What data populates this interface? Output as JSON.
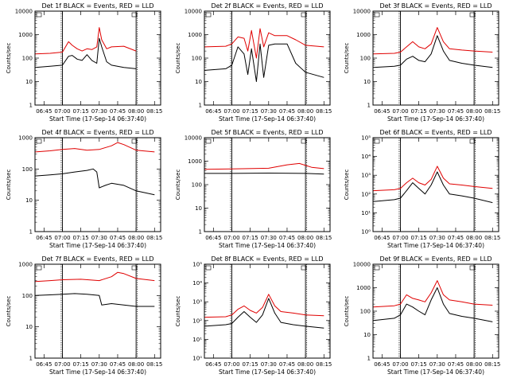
{
  "chart_data": [
    {
      "type": "line",
      "title": "Det 1f BLACK = Events, RED = LLD",
      "ylabel": "Counts/sec",
      "xlabel": "Start Time (17-Sep-14 06:37:40)",
      "yscale": "log",
      "ylim": [
        1,
        10000
      ],
      "y_ticks": [
        "1",
        "10",
        "100",
        "1000",
        "10000"
      ],
      "xlim": [
        "06:37:40",
        "08:20:00"
      ],
      "x_ticks": [
        "06:45",
        "07:00",
        "07:15",
        "07:30",
        "07:45",
        "08:00",
        "08:15"
      ],
      "markers": {
        "dotted": [
          "06:59",
          "08:01"
        ],
        "solid": [
          "07:00",
          "08:00"
        ]
      },
      "series": [
        {
          "color": "#000000",
          "x": [
            "06:38",
            "06:50",
            "07:00",
            "07:05",
            "07:08",
            "07:12",
            "07:16",
            "07:20",
            "07:24",
            "07:28",
            "07:30",
            "07:32",
            "07:36",
            "07:40",
            "07:50",
            "08:00"
          ],
          "y": [
            40,
            45,
            50,
            120,
            130,
            90,
            80,
            140,
            80,
            60,
            700,
            300,
            70,
            50,
            40,
            35
          ]
        },
        {
          "color": "#e00000",
          "x": [
            "06:38",
            "06:50",
            "07:00",
            "07:05",
            "07:08",
            "07:12",
            "07:16",
            "07:20",
            "07:24",
            "07:28",
            "07:30",
            "07:32",
            "07:36",
            "07:40",
            "07:50",
            "08:00"
          ],
          "y": [
            150,
            160,
            180,
            500,
            350,
            250,
            200,
            250,
            230,
            300,
            2000,
            600,
            250,
            300,
            320,
            200
          ]
        }
      ]
    },
    {
      "type": "line",
      "title": "Det 2f BLACK = Events, RED = LLD",
      "ylabel": "Counts/sec",
      "xlabel": "Start Time (17-Sep-14 06:37:40)",
      "yscale": "log",
      "ylim": [
        1,
        10000
      ],
      "y_ticks": [
        "1",
        "10",
        "100",
        "1000",
        "10000"
      ],
      "xlim": [
        "06:37:40",
        "08:20:00"
      ],
      "x_ticks": [
        "06:45",
        "07:00",
        "07:15",
        "07:30",
        "07:45",
        "08:00",
        "08:15"
      ],
      "markers": {
        "dotted": [
          "06:59",
          "08:01"
        ],
        "solid": [
          "07:00",
          "08:00"
        ]
      },
      "series": [
        {
          "color": "#000000",
          "x": [
            "06:38",
            "06:55",
            "07:00",
            "07:05",
            "07:10",
            "07:13",
            "07:16",
            "07:20",
            "07:23",
            "07:26",
            "07:30",
            "07:35",
            "07:45",
            "07:52",
            "08:00",
            "08:15"
          ],
          "y": [
            30,
            35,
            50,
            300,
            150,
            20,
            250,
            10,
            400,
            15,
            350,
            400,
            400,
            60,
            25,
            15
          ]
        },
        {
          "color": "#e00000",
          "x": [
            "06:38",
            "06:55",
            "07:00",
            "07:05",
            "07:10",
            "07:13",
            "07:16",
            "07:20",
            "07:23",
            "07:26",
            "07:30",
            "07:35",
            "07:45",
            "07:52",
            "08:00",
            "08:15"
          ],
          "y": [
            300,
            320,
            400,
            800,
            700,
            200,
            1500,
            100,
            1800,
            300,
            1200,
            900,
            900,
            600,
            350,
            300
          ]
        }
      ]
    },
    {
      "type": "line",
      "title": "Det 3f BLACK = Events, RED = LLD",
      "ylabel": "Counts/sec",
      "xlabel": "Start Time (17-Sep-14 06:37:40)",
      "yscale": "log",
      "ylim": [
        1,
        10000
      ],
      "y_ticks": [
        "1",
        "10",
        "100",
        "1000",
        "10000"
      ],
      "xlim": [
        "06:37:40",
        "08:20:00"
      ],
      "x_ticks": [
        "06:45",
        "07:00",
        "07:15",
        "07:30",
        "07:45",
        "08:00",
        "08:15"
      ],
      "markers": {
        "dotted": [
          "06:59",
          "08:01"
        ],
        "solid": [
          "07:00",
          "08:00"
        ]
      },
      "series": [
        {
          "color": "#000000",
          "x": [
            "06:38",
            "06:55",
            "07:00",
            "07:05",
            "07:10",
            "07:15",
            "07:20",
            "07:25",
            "07:30",
            "07:35",
            "07:40",
            "07:50",
            "08:00",
            "08:15"
          ],
          "y": [
            40,
            45,
            50,
            90,
            120,
            80,
            70,
            150,
            900,
            200,
            80,
            60,
            50,
            40
          ]
        },
        {
          "color": "#e00000",
          "x": [
            "06:38",
            "06:55",
            "07:00",
            "07:05",
            "07:10",
            "07:15",
            "07:20",
            "07:25",
            "07:30",
            "07:35",
            "07:40",
            "07:50",
            "08:00",
            "08:15"
          ],
          "y": [
            150,
            160,
            180,
            300,
            500,
            300,
            250,
            400,
            2000,
            500,
            250,
            220,
            200,
            180
          ]
        }
      ]
    },
    {
      "type": "line",
      "title": "Det 4f BLACK = Events, RED = LLD",
      "ylabel": "Counts/sec",
      "xlabel": "Start Time (17-Sep-14 06:37:40)",
      "yscale": "log",
      "ylim": [
        1,
        1000
      ],
      "y_ticks": [
        "1",
        "10",
        "100",
        "1000"
      ],
      "xlim": [
        "06:37:40",
        "08:20:00"
      ],
      "x_ticks": [
        "06:45",
        "07:00",
        "07:15",
        "07:30",
        "07:45",
        "08:00",
        "08:15"
      ],
      "markers": {
        "dotted": [
          "06:59",
          "08:01"
        ],
        "solid": [
          "07:00",
          "08:00"
        ]
      },
      "series": [
        {
          "color": "#000000",
          "x": [
            "06:38",
            "06:50",
            "07:00",
            "07:10",
            "07:20",
            "07:25",
            "07:28",
            "07:30",
            "07:35",
            "07:40",
            "07:50",
            "08:00",
            "08:15"
          ],
          "y": [
            60,
            65,
            70,
            80,
            90,
            100,
            80,
            25,
            30,
            35,
            30,
            20,
            15
          ]
        },
        {
          "color": "#e00000",
          "x": [
            "06:38",
            "06:50",
            "07:00",
            "07:10",
            "07:20",
            "07:30",
            "07:40",
            "07:45",
            "07:50",
            "08:00",
            "08:15"
          ],
          "y": [
            350,
            380,
            420,
            450,
            400,
            420,
            550,
            700,
            600,
            400,
            350
          ]
        }
      ]
    },
    {
      "type": "line",
      "title": "Det 5f BLACK = Events, RED = LLD",
      "ylabel": "Counts/sec",
      "xlabel": "Start Time (17-Sep-14 06:37:40)",
      "yscale": "log",
      "ylim": [
        1,
        10000
      ],
      "y_ticks": [
        "1",
        "10",
        "100",
        "1000",
        "10000"
      ],
      "xlim": [
        "06:37:40",
        "08:20:00"
      ],
      "x_ticks": [
        "06:45",
        "07:00",
        "07:15",
        "07:30",
        "07:45",
        "08:00",
        "08:15"
      ],
      "markers": {
        "dotted": [
          "06:59",
          "08:01"
        ],
        "solid": [
          "07:00",
          "08:00"
        ]
      },
      "series": [
        {
          "color": "#000000",
          "x": [
            "06:38",
            "07:00",
            "07:30",
            "08:00",
            "08:15"
          ],
          "y": [
            300,
            300,
            310,
            300,
            280
          ]
        },
        {
          "color": "#e00000",
          "x": [
            "06:38",
            "07:00",
            "07:30",
            "07:45",
            "07:55",
            "08:05",
            "08:15"
          ],
          "y": [
            450,
            470,
            500,
            700,
            800,
            550,
            480
          ]
        }
      ]
    },
    {
      "type": "line",
      "title": "Det 6f BLACK = Events, RED = LLD",
      "ylabel": "Counts/sec",
      "xlabel": "Start Time (17-Sep-14 06:37:40)",
      "yscale": "log",
      "ylim": [
        1,
        100000
      ],
      "y_ticks": [
        "10⁰",
        "10¹",
        "10²",
        "10³",
        "10⁴",
        "10⁵"
      ],
      "xlim": [
        "06:37:40",
        "08:20:00"
      ],
      "x_ticks": [
        "06:45",
        "07:00",
        "07:15",
        "07:30",
        "07:45",
        "08:00",
        "08:15"
      ],
      "markers": {
        "dotted": [
          "06:59",
          "08:01"
        ],
        "solid": [
          "07:00",
          "08:00"
        ]
      },
      "series": [
        {
          "color": "#000000",
          "x": [
            "06:38",
            "06:55",
            "07:00",
            "07:05",
            "07:10",
            "07:15",
            "07:20",
            "07:25",
            "07:30",
            "07:35",
            "07:40",
            "07:50",
            "08:00",
            "08:15"
          ],
          "y": [
            40,
            50,
            60,
            150,
            400,
            200,
            100,
            300,
            1500,
            300,
            100,
            80,
            60,
            35
          ]
        },
        {
          "color": "#e00000",
          "x": [
            "06:38",
            "06:55",
            "07:00",
            "07:05",
            "07:10",
            "07:15",
            "07:20",
            "07:25",
            "07:30",
            "07:35",
            "07:40",
            "07:50",
            "08:00",
            "08:15"
          ],
          "y": [
            150,
            170,
            200,
            400,
            700,
            400,
            300,
            600,
            3000,
            700,
            350,
            300,
            250,
            200
          ]
        }
      ]
    },
    {
      "type": "line",
      "title": "Det 7f BLACK = Events, RED = LLD",
      "ylabel": "Counts/sec",
      "xlabel": "Start Time (17-Sep-14 06:37:40)",
      "yscale": "log",
      "ylim": [
        1,
        1000
      ],
      "y_ticks": [
        "1",
        "10",
        "100",
        "1000"
      ],
      "xlim": [
        "06:37:40",
        "08:20:00"
      ],
      "x_ticks": [
        "06:45",
        "07:00",
        "07:15",
        "07:30",
        "07:45",
        "08:00",
        "08:15"
      ],
      "markers": {
        "dotted": [
          "06:59",
          "08:01"
        ],
        "solid": [
          "07:00",
          "08:00"
        ]
      },
      "series": [
        {
          "color": "#000000",
          "x": [
            "06:38",
            "06:50",
            "07:00",
            "07:10",
            "07:20",
            "07:30",
            "07:32",
            "07:40",
            "07:50",
            "08:00",
            "08:15"
          ],
          "y": [
            100,
            105,
            110,
            115,
            110,
            100,
            50,
            55,
            50,
            45,
            45
          ]
        },
        {
          "color": "#e00000",
          "x": [
            "06:38",
            "06:50",
            "07:00",
            "07:15",
            "07:30",
            "07:40",
            "07:45",
            "07:50",
            "08:00",
            "08:15"
          ],
          "y": [
            280,
            300,
            320,
            330,
            300,
            400,
            550,
            500,
            350,
            300
          ]
        }
      ]
    },
    {
      "type": "line",
      "title": "Det 8f BLACK = Events, RED = LLD",
      "ylabel": "Counts/sec",
      "xlabel": "Start Time (17-Sep-14 06:37:40)",
      "yscale": "log",
      "ylim": [
        1,
        100000
      ],
      "y_ticks": [
        "10⁰",
        "10¹",
        "10²",
        "10³",
        "10⁴",
        "10⁵"
      ],
      "xlim": [
        "06:37:40",
        "08:20:00"
      ],
      "x_ticks": [
        "06:45",
        "07:00",
        "07:15",
        "07:30",
        "07:45",
        "08:00",
        "08:15"
      ],
      "markers": {
        "dotted": [
          "06:59",
          "08:01"
        ],
        "solid": [
          "07:00",
          "08:00"
        ]
      },
      "series": [
        {
          "color": "#000000",
          "x": [
            "06:38",
            "06:55",
            "07:00",
            "07:05",
            "07:10",
            "07:15",
            "07:20",
            "07:25",
            "07:30",
            "07:35",
            "07:40",
            "07:50",
            "08:00",
            "08:15"
          ],
          "y": [
            50,
            60,
            70,
            150,
            300,
            150,
            80,
            200,
            1500,
            250,
            80,
            60,
            50,
            40
          ]
        },
        {
          "color": "#e00000",
          "x": [
            "06:38",
            "06:55",
            "07:00",
            "07:05",
            "07:10",
            "07:15",
            "07:20",
            "07:25",
            "07:30",
            "07:35",
            "07:40",
            "07:50",
            "08:00",
            "08:15"
          ],
          "y": [
            150,
            160,
            200,
            400,
            600,
            350,
            250,
            500,
            2500,
            600,
            300,
            250,
            200,
            180
          ]
        }
      ]
    },
    {
      "type": "line",
      "title": "Det 9f BLACK = Events, RED = LLD",
      "ylabel": "Counts/sec",
      "xlabel": "Start Time (17-Sep-14 06:37:40)",
      "yscale": "log",
      "ylim": [
        1,
        10000
      ],
      "y_ticks": [
        "1",
        "10",
        "100",
        "1000",
        "10000"
      ],
      "xlim": [
        "06:37:40",
        "08:20:00"
      ],
      "x_ticks": [
        "06:45",
        "07:00",
        "07:15",
        "07:30",
        "07:45",
        "08:00",
        "08:15"
      ],
      "markers": {
        "dotted": [
          "06:59",
          "08:01"
        ],
        "solid": [
          "07:00",
          "08:00"
        ]
      },
      "series": [
        {
          "color": "#000000",
          "x": [
            "06:38",
            "06:55",
            "07:00",
            "07:05",
            "07:10",
            "07:15",
            "07:20",
            "07:25",
            "07:30",
            "07:35",
            "07:40",
            "07:50",
            "08:00",
            "08:15"
          ],
          "y": [
            40,
            50,
            70,
            200,
            150,
            100,
            70,
            300,
            1000,
            200,
            80,
            60,
            50,
            35
          ]
        },
        {
          "color": "#e00000",
          "x": [
            "06:38",
            "06:55",
            "07:00",
            "07:05",
            "07:10",
            "07:15",
            "07:20",
            "07:25",
            "07:30",
            "07:35",
            "07:40",
            "07:50",
            "08:00",
            "08:15"
          ],
          "y": [
            150,
            170,
            200,
            500,
            350,
            300,
            250,
            600,
            2000,
            500,
            300,
            250,
            200,
            180
          ]
        }
      ]
    }
  ]
}
